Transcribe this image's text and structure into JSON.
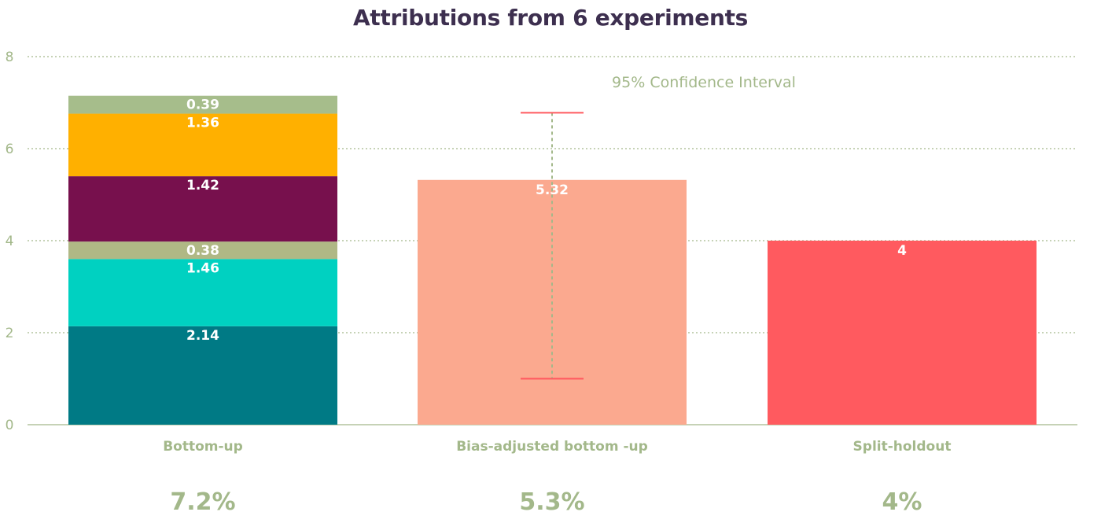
{
  "chart_data": {
    "type": "bar",
    "title": "Attributions from 6 experiments",
    "ylim": [
      0,
      8
    ],
    "yticks": [
      0,
      2,
      4,
      6,
      8
    ],
    "grid": true,
    "categories": [
      "Bottom-up",
      "Bias-adjusted bottom -up",
      "Split-holdout"
    ],
    "stacked_bar": {
      "category": "Bottom-up",
      "segments": [
        {
          "value": 2.14,
          "label": "2.14",
          "color": "#007a85"
        },
        {
          "value": 1.46,
          "label": "1.46",
          "color": "#00d1c1"
        },
        {
          "value": 0.38,
          "label": "0.38",
          "color": "#b0b885"
        },
        {
          "value": 1.42,
          "label": "1.42",
          "color": "#77104d"
        },
        {
          "value": 1.36,
          "label": "1.36",
          "color": "#ffb000"
        },
        {
          "value": 0.39,
          "label": "0.39",
          "color": "#a6bd8b"
        }
      ]
    },
    "bars": [
      {
        "category": "Bias-adjusted bottom -up",
        "value": 5.32,
        "label": "5.32",
        "color": "#fba98f"
      },
      {
        "category": "Split-holdout",
        "value": 4,
        "label": "4",
        "color": "#ff5a5f"
      }
    ],
    "error_bar": {
      "category": "Bias-adjusted bottom -up",
      "low": 1.0,
      "high": 6.78,
      "label": "95% Confidence Interval",
      "cap_color": "#ff5a5f",
      "line_color": "#a3b88a"
    },
    "percent_labels": [
      "7.2%",
      "5.3%",
      "4%"
    ],
    "colors": {
      "title": "#3d2f4f",
      "axis_text": "#a3b88a",
      "grid": "#a3b88a"
    }
  }
}
